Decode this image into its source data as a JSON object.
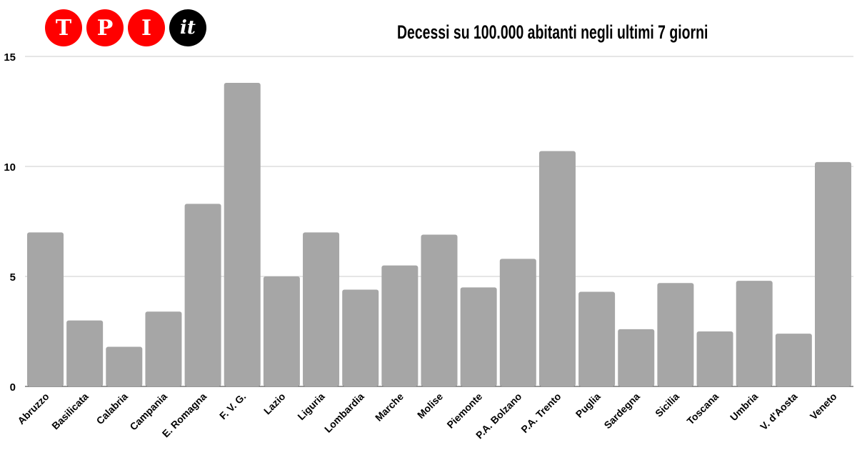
{
  "logo": {
    "letters": [
      "T",
      "P",
      "I"
    ],
    "suffix": "it"
  },
  "chart_data": {
    "type": "bar",
    "title": "Decessi su 100.000 abitanti negli ultimi 7 giorni",
    "xlabel": "",
    "ylabel": "",
    "ylim": [
      0,
      15
    ],
    "yticks": [
      0,
      5,
      10,
      15
    ],
    "grid": true,
    "bar_color": "#a6a6a6",
    "categories": [
      "Abruzzo",
      "Basilicata",
      "Calabria",
      "Campania",
      "E. Romagna",
      "F. V. G.",
      "Lazio",
      "Liguria",
      "Lombardia",
      "Marche",
      "Molise",
      "Piemonte",
      "P.A. Bolzano",
      "P.A. Trento",
      "Puglia",
      "Sardegna",
      "Sicilia",
      "Toscana",
      "Umbria",
      "V. d'Aosta",
      "Veneto"
    ],
    "values": [
      7.0,
      3.0,
      1.8,
      3.4,
      8.3,
      13.8,
      5.0,
      7.0,
      4.4,
      5.5,
      6.9,
      4.5,
      5.8,
      10.7,
      4.3,
      2.6,
      4.7,
      2.5,
      4.8,
      2.4,
      10.2
    ]
  }
}
